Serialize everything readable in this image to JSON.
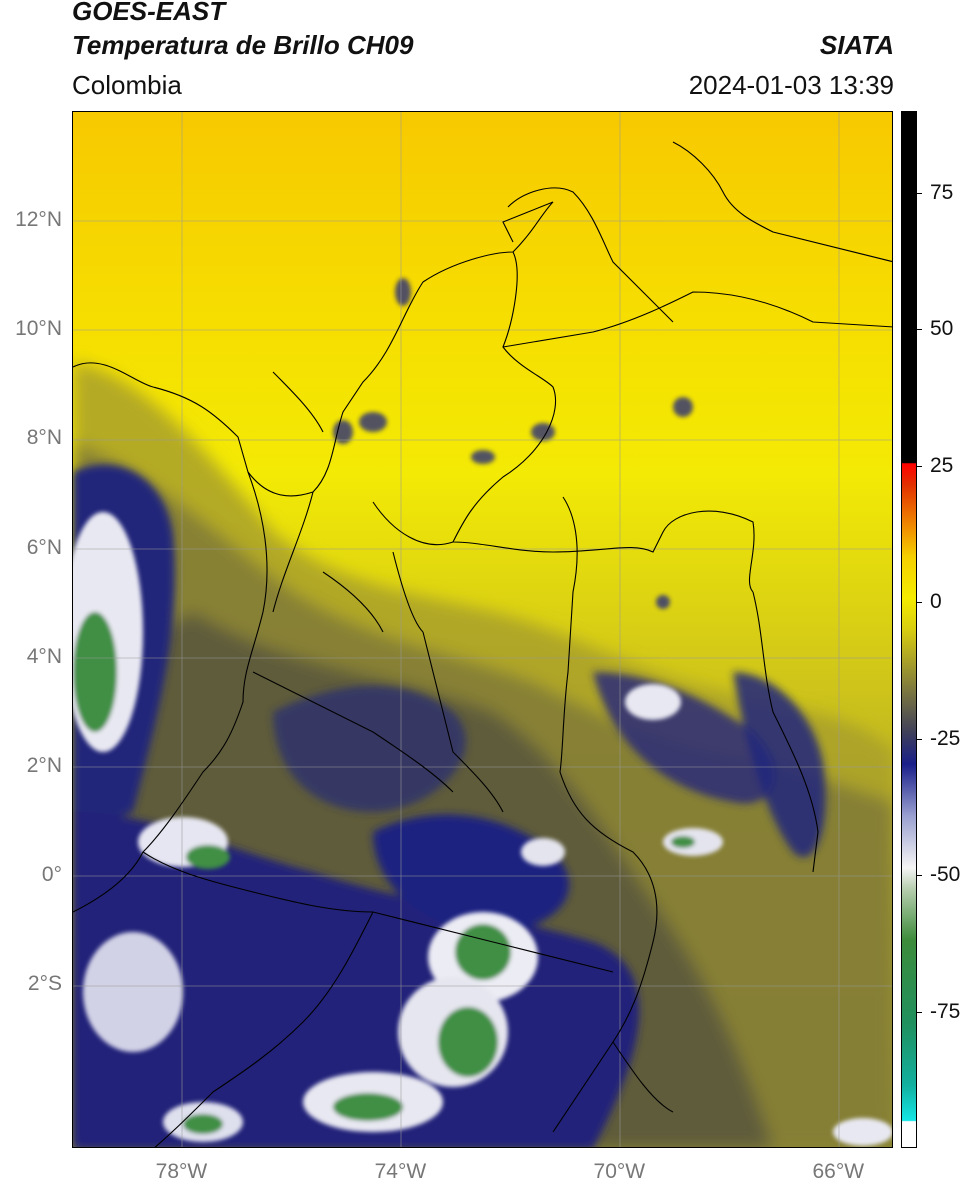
{
  "header": {
    "satellite": "GOES-EAST",
    "product": "Temperatura de Brillo CH09",
    "organization": "SIATA",
    "region": "Colombia",
    "datetime": "2024-01-03 13:39"
  },
  "map": {
    "lon_range": [
      -80,
      -65
    ],
    "lat_range": [
      -5,
      14
    ],
    "lat_ticks": [
      {
        "value": 12,
        "label": "12°N"
      },
      {
        "value": 10,
        "label": "10°N"
      },
      {
        "value": 8,
        "label": "8°N"
      },
      {
        "value": 6,
        "label": "6°N"
      },
      {
        "value": 4,
        "label": "4°N"
      },
      {
        "value": 2,
        "label": "2°N"
      },
      {
        "value": 0,
        "label": "0°"
      },
      {
        "value": -2,
        "label": "2°S"
      }
    ],
    "lon_ticks": [
      {
        "value": -78,
        "label": "78°W"
      },
      {
        "value": -74,
        "label": "74°W"
      },
      {
        "value": -70,
        "label": "70°W"
      },
      {
        "value": -66,
        "label": "66°W"
      }
    ],
    "colors": {
      "warm": "#f5e800",
      "mid": "#8f8a35",
      "dark_olive": "#545339",
      "navy": "#1c1f78",
      "white": "#f2f2f8",
      "green": "#3f8f45",
      "border": "#000000",
      "grid": "#9a9a9a"
    }
  },
  "colorbar": {
    "unit_range": [
      -100,
      90
    ],
    "ticks": [
      {
        "value": 75,
        "label": "75"
      },
      {
        "value": 50,
        "label": "50"
      },
      {
        "value": 25,
        "label": "25"
      },
      {
        "value": 0,
        "label": "0"
      },
      {
        "value": -25,
        "label": "-25"
      },
      {
        "value": -50,
        "label": "-50"
      },
      {
        "value": -75,
        "label": "-75"
      }
    ]
  }
}
